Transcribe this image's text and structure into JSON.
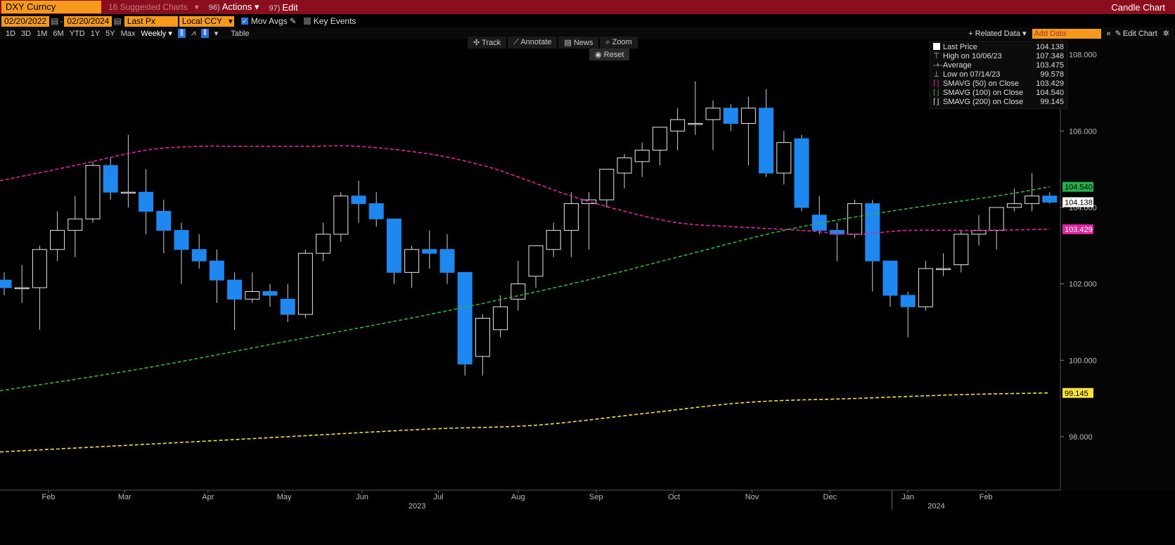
{
  "topbar": {
    "ticker": "DXY Curncy",
    "suggested": "16 Suggested Charts",
    "actions_num": "96)",
    "actions": "Actions",
    "edit_num": "97)",
    "edit": "Edit",
    "title": "Candle Chart"
  },
  "controls": {
    "start_date": "02/20/2022",
    "end_date": "02/20/2024",
    "field": "Last Px",
    "currency": "Local CCY",
    "mov_avgs": "Mov Avgs",
    "key_events": "Key Events"
  },
  "periods": [
    "1D",
    "3D",
    "1M",
    "6M",
    "YTD",
    "1Y",
    "5Y",
    "Max"
  ],
  "frequency": "Weekly",
  "table_label": "Table",
  "related_data": "+ Related Data",
  "add_data": "Add Data",
  "edit_chart": "Edit Chart",
  "tools": {
    "track": "Track",
    "annotate": "Annotate",
    "news": "News",
    "zoom": "Zoom",
    "reset": "Reset"
  },
  "legend": [
    {
      "label": "Last Price",
      "value": "104.138"
    },
    {
      "label": "High on 10/06/23",
      "value": "107.348"
    },
    {
      "label": "Average",
      "value": "103.475"
    },
    {
      "label": "Low on 07/14/23",
      "value": "99.578"
    },
    {
      "label": "SMAVG (50)  on Close",
      "value": "103.429"
    },
    {
      "label": "SMAVG (100)  on Close",
      "value": "104.540"
    },
    {
      "label": "SMAVG (200)  on Close",
      "value": "99.145"
    }
  ],
  "chart_data": {
    "type": "candlestick",
    "ylim": [
      96.6,
      108.4
    ],
    "yticks": [
      98,
      100,
      102,
      104,
      106,
      108
    ],
    "ytick_labels": [
      "98.000",
      "100.000",
      "102.000",
      "104.000",
      "106.000",
      "108.000"
    ],
    "months": [
      {
        "label": "Feb",
        "week": 2.5
      },
      {
        "label": "Mar",
        "week": 6.8
      },
      {
        "label": "Apr",
        "week": 11.5
      },
      {
        "label": "May",
        "week": 15.8
      },
      {
        "label": "Jun",
        "week": 20.2
      },
      {
        "label": "Jul",
        "week": 24.5
      },
      {
        "label": "Aug",
        "week": 29.0
      },
      {
        "label": "Sep",
        "week": 33.4
      },
      {
        "label": "Oct",
        "week": 37.8
      },
      {
        "label": "Nov",
        "week": 42.2
      },
      {
        "label": "Dec",
        "week": 46.6
      },
      {
        "label": "Jan",
        "week": 51.0
      },
      {
        "label": "Feb",
        "week": 55.4
      }
    ],
    "years": [
      {
        "label": "2023",
        "week": 23.3
      },
      {
        "label": "2024",
        "week": 52.6
      }
    ],
    "candles": [
      {
        "o": 102.1,
        "h": 102.3,
        "l": 101.7,
        "c": 101.9
      },
      {
        "o": 101.9,
        "h": 102.5,
        "l": 101.5,
        "c": 101.9
      },
      {
        "o": 101.9,
        "h": 103.0,
        "l": 100.8,
        "c": 102.9
      },
      {
        "o": 102.9,
        "h": 103.9,
        "l": 102.6,
        "c": 103.4
      },
      {
        "o": 103.4,
        "h": 104.3,
        "l": 102.7,
        "c": 103.7
      },
      {
        "o": 103.7,
        "h": 105.2,
        "l": 103.6,
        "c": 105.1
      },
      {
        "o": 105.1,
        "h": 105.3,
        "l": 104.2,
        "c": 104.4
      },
      {
        "o": 104.4,
        "h": 105.9,
        "l": 104.0,
        "c": 104.4
      },
      {
        "o": 104.4,
        "h": 105.0,
        "l": 103.3,
        "c": 103.9
      },
      {
        "o": 103.9,
        "h": 104.2,
        "l": 102.8,
        "c": 103.4
      },
      {
        "o": 103.4,
        "h": 103.6,
        "l": 102.0,
        "c": 102.9
      },
      {
        "o": 102.9,
        "h": 103.3,
        "l": 102.4,
        "c": 102.6
      },
      {
        "o": 102.6,
        "h": 102.9,
        "l": 101.5,
        "c": 102.1
      },
      {
        "o": 102.1,
        "h": 102.3,
        "l": 100.8,
        "c": 101.6
      },
      {
        "o": 101.6,
        "h": 102.3,
        "l": 101.5,
        "c": 101.8
      },
      {
        "o": 101.8,
        "h": 102.0,
        "l": 101.4,
        "c": 101.7
      },
      {
        "o": 101.6,
        "h": 102.0,
        "l": 101.0,
        "c": 101.2
      },
      {
        "o": 101.2,
        "h": 102.9,
        "l": 101.1,
        "c": 102.8
      },
      {
        "o": 102.8,
        "h": 103.6,
        "l": 102.6,
        "c": 103.3
      },
      {
        "o": 103.3,
        "h": 104.4,
        "l": 103.1,
        "c": 104.3
      },
      {
        "o": 104.3,
        "h": 104.7,
        "l": 103.6,
        "c": 104.1
      },
      {
        "o": 104.1,
        "h": 104.4,
        "l": 103.5,
        "c": 103.7
      },
      {
        "o": 103.7,
        "h": 103.7,
        "l": 102.0,
        "c": 102.3
      },
      {
        "o": 102.3,
        "h": 103.0,
        "l": 101.9,
        "c": 102.9
      },
      {
        "o": 102.9,
        "h": 103.4,
        "l": 102.4,
        "c": 102.8
      },
      {
        "o": 102.9,
        "h": 103.3,
        "l": 102.0,
        "c": 102.3
      },
      {
        "o": 102.3,
        "h": 102.3,
        "l": 99.6,
        "c": 99.9
      },
      {
        "o": 100.1,
        "h": 101.2,
        "l": 99.6,
        "c": 101.1
      },
      {
        "o": 100.8,
        "h": 101.7,
        "l": 100.6,
        "c": 101.4
      },
      {
        "o": 101.6,
        "h": 102.6,
        "l": 101.3,
        "c": 102.0
      },
      {
        "o": 102.2,
        "h": 103.0,
        "l": 101.9,
        "c": 103.0
      },
      {
        "o": 102.9,
        "h": 103.6,
        "l": 102.7,
        "c": 103.4
      },
      {
        "o": 103.4,
        "h": 104.4,
        "l": 102.7,
        "c": 104.1
      },
      {
        "o": 104.1,
        "h": 104.4,
        "l": 102.9,
        "c": 104.2
      },
      {
        "o": 104.2,
        "h": 105.0,
        "l": 104.0,
        "c": 105.0
      },
      {
        "o": 104.9,
        "h": 105.4,
        "l": 104.5,
        "c": 105.3
      },
      {
        "o": 105.2,
        "h": 105.7,
        "l": 104.8,
        "c": 105.5
      },
      {
        "o": 105.5,
        "h": 106.1,
        "l": 105.1,
        "c": 106.1
      },
      {
        "o": 106.0,
        "h": 106.6,
        "l": 105.5,
        "c": 106.3
      },
      {
        "o": 106.2,
        "h": 107.3,
        "l": 105.9,
        "c": 106.2
      },
      {
        "o": 106.3,
        "h": 106.8,
        "l": 105.5,
        "c": 106.6
      },
      {
        "o": 106.6,
        "h": 106.7,
        "l": 106.0,
        "c": 106.2
      },
      {
        "o": 106.2,
        "h": 106.9,
        "l": 105.1,
        "c": 106.6
      },
      {
        "o": 106.6,
        "h": 107.1,
        "l": 104.8,
        "c": 104.9
      },
      {
        "o": 104.9,
        "h": 106.0,
        "l": 104.6,
        "c": 105.7
      },
      {
        "o": 105.8,
        "h": 105.9,
        "l": 103.9,
        "c": 104.0
      },
      {
        "o": 103.8,
        "h": 104.3,
        "l": 103.3,
        "c": 103.4
      },
      {
        "o": 103.4,
        "h": 103.6,
        "l": 102.6,
        "c": 103.3
      },
      {
        "o": 103.3,
        "h": 104.2,
        "l": 103.2,
        "c": 104.1
      },
      {
        "o": 104.1,
        "h": 104.2,
        "l": 101.8,
        "c": 102.6
      },
      {
        "o": 102.6,
        "h": 102.6,
        "l": 101.4,
        "c": 101.7
      },
      {
        "o": 101.7,
        "h": 101.8,
        "l": 100.6,
        "c": 101.4
      },
      {
        "o": 101.4,
        "h": 102.6,
        "l": 101.3,
        "c": 102.4
      },
      {
        "o": 102.4,
        "h": 102.8,
        "l": 102.2,
        "c": 102.4
      },
      {
        "o": 102.5,
        "h": 103.4,
        "l": 102.3,
        "c": 103.3
      },
      {
        "o": 103.3,
        "h": 103.8,
        "l": 103.0,
        "c": 103.4
      },
      {
        "o": 103.4,
        "h": 104.0,
        "l": 102.9,
        "c": 104.0
      },
      {
        "o": 104.0,
        "h": 104.5,
        "l": 103.9,
        "c": 104.1
      },
      {
        "o": 104.1,
        "h": 104.9,
        "l": 103.9,
        "c": 104.3
      },
      {
        "o": 104.3,
        "h": 104.4,
        "l": 104.1,
        "c": 104.14
      }
    ],
    "series": [
      {
        "name": "SMAVG (50)  on Close",
        "color": "#e0259e",
        "points": [
          [
            0,
            104.7
          ],
          [
            4,
            105.1
          ],
          [
            8,
            105.5
          ],
          [
            11,
            105.6
          ],
          [
            13,
            105.6
          ],
          [
            17,
            105.6
          ],
          [
            20,
            105.6
          ],
          [
            24,
            105.4
          ],
          [
            27,
            105.1
          ],
          [
            29,
            104.8
          ],
          [
            32,
            104.3
          ],
          [
            35,
            103.9
          ],
          [
            38,
            103.6
          ],
          [
            41,
            103.5
          ],
          [
            45,
            103.4
          ],
          [
            48,
            103.3
          ],
          [
            51,
            103.4
          ],
          [
            55,
            103.4
          ],
          [
            59,
            103.43
          ]
        ]
      },
      {
        "name": "SMAVG (100)  on Close",
        "color": "#34b034",
        "points": [
          [
            0,
            99.2
          ],
          [
            8,
            99.8
          ],
          [
            16,
            100.5
          ],
          [
            24,
            101.2
          ],
          [
            32,
            102.0
          ],
          [
            38,
            102.7
          ],
          [
            44,
            103.4
          ],
          [
            50,
            103.9
          ],
          [
            56,
            104.3
          ],
          [
            59,
            104.54
          ]
        ]
      },
      {
        "name": "SMAVG (200)  on Close",
        "color": "#f0e040",
        "points": [
          [
            0,
            97.6
          ],
          [
            8,
            97.8
          ],
          [
            16,
            98.0
          ],
          [
            24,
            98.2
          ],
          [
            30,
            98.3
          ],
          [
            36,
            98.6
          ],
          [
            42,
            98.9
          ],
          [
            48,
            99.0
          ],
          [
            54,
            99.1
          ],
          [
            59,
            99.145
          ]
        ]
      }
    ],
    "right_labels": [
      {
        "value": "104.540",
        "y": 104.54,
        "color": "#22b14c",
        "text_color": "#000"
      },
      {
        "value": "104.138",
        "y": 104.138,
        "color": "#ffffff",
        "text_color": "#000"
      },
      {
        "value": "103.429",
        "y": 103.429,
        "color": "#e0259e",
        "text_color": "#fff"
      },
      {
        "value": "99.145",
        "y": 99.145,
        "color": "#f7e13a",
        "text_color": "#000"
      }
    ]
  }
}
